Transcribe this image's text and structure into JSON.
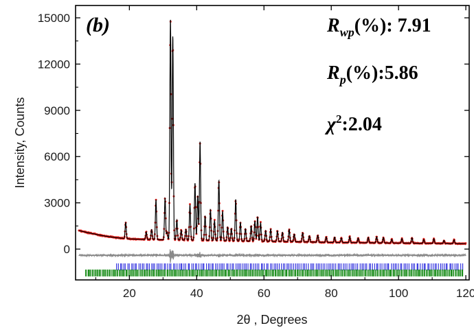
{
  "chart_data": {
    "type": "line",
    "panel_label": "(b)",
    "xlabel": "2θ , Degrees",
    "ylabel": "Intensity, Counts",
    "xlim": [
      4,
      121
    ],
    "ylim": [
      -2000,
      15800
    ],
    "xticks": [
      20,
      40,
      60,
      80,
      100,
      120
    ],
    "yticks": [
      0,
      3000,
      6000,
      9000,
      12000,
      15000
    ],
    "annotations": {
      "rwp": {
        "symbol": "R",
        "sub": "wp",
        "text": "(%): 7.91"
      },
      "rp": {
        "symbol": "R",
        "sub": "p",
        "text": "(%):5.86"
      },
      "chi2": {
        "symbol": "χ",
        "sup": "2",
        "text": ":2.04"
      }
    },
    "colors": {
      "observed": "#e8231f",
      "calculated": "#000000",
      "difference": "#8a8a8a",
      "phase1_ticks": "#2323dd",
      "phase2_ticks": "#118811"
    },
    "background": [
      [
        5,
        1200
      ],
      [
        8,
        1050
      ],
      [
        12,
        870
      ],
      [
        16,
        740
      ],
      [
        20,
        660
      ],
      [
        25,
        620
      ],
      [
        30,
        600
      ],
      [
        40,
        570
      ],
      [
        50,
        530
      ],
      [
        60,
        500
      ],
      [
        70,
        470
      ],
      [
        80,
        430
      ],
      [
        90,
        410
      ],
      [
        100,
        390
      ],
      [
        110,
        370
      ],
      [
        120,
        350
      ]
    ],
    "peaks": [
      {
        "x": 18.9,
        "h": 1050
      },
      {
        "x": 25.0,
        "h": 500
      },
      {
        "x": 26.6,
        "h": 650
      },
      {
        "x": 27.9,
        "h": 2600
      },
      {
        "x": 30.6,
        "h": 2700
      },
      {
        "x": 31.2,
        "h": 500
      },
      {
        "x": 32.2,
        "h": 14300
      },
      {
        "x": 32.9,
        "h": 13200
      },
      {
        "x": 34.1,
        "h": 1300
      },
      {
        "x": 35.4,
        "h": 650
      },
      {
        "x": 36.8,
        "h": 700
      },
      {
        "x": 38.0,
        "h": 2300
      },
      {
        "x": 39.5,
        "h": 3700
      },
      {
        "x": 40.3,
        "h": 2900
      },
      {
        "x": 41.0,
        "h": 6400
      },
      {
        "x": 42.5,
        "h": 1600
      },
      {
        "x": 44.1,
        "h": 2000
      },
      {
        "x": 45.3,
        "h": 1300
      },
      {
        "x": 46.6,
        "h": 3900
      },
      {
        "x": 47.7,
        "h": 1900
      },
      {
        "x": 49.2,
        "h": 900
      },
      {
        "x": 50.3,
        "h": 800
      },
      {
        "x": 51.6,
        "h": 2700
      },
      {
        "x": 53.0,
        "h": 1200
      },
      {
        "x": 54.5,
        "h": 800
      },
      {
        "x": 56.2,
        "h": 1000
      },
      {
        "x": 57.3,
        "h": 1300
      },
      {
        "x": 58.1,
        "h": 1600
      },
      {
        "x": 59.0,
        "h": 1200
      },
      {
        "x": 60.5,
        "h": 700
      },
      {
        "x": 62.0,
        "h": 800
      },
      {
        "x": 64.0,
        "h": 700
      },
      {
        "x": 65.5,
        "h": 600
      },
      {
        "x": 67.5,
        "h": 800
      },
      {
        "x": 69.0,
        "h": 500
      },
      {
        "x": 71.5,
        "h": 600
      },
      {
        "x": 73.5,
        "h": 400
      },
      {
        "x": 76.0,
        "h": 450
      },
      {
        "x": 78.5,
        "h": 350
      },
      {
        "x": 81.0,
        "h": 350
      },
      {
        "x": 83.0,
        "h": 300
      },
      {
        "x": 85.5,
        "h": 400
      },
      {
        "x": 88.0,
        "h": 300
      },
      {
        "x": 91.0,
        "h": 350
      },
      {
        "x": 93.5,
        "h": 400
      },
      {
        "x": 95.5,
        "h": 350
      },
      {
        "x": 98.0,
        "h": 250
      },
      {
        "x": 101.0,
        "h": 300
      },
      {
        "x": 104.0,
        "h": 350
      },
      {
        "x": 107.5,
        "h": 250
      },
      {
        "x": 110.5,
        "h": 300
      },
      {
        "x": 113.5,
        "h": 200
      },
      {
        "x": 116.5,
        "h": 250
      }
    ],
    "difference_offset": -400,
    "phase1_tick_y": -1150,
    "phase2_tick_y": -1550,
    "phase1_tick_start": 16.2,
    "phase1_tick_count": 190,
    "phase2_tick_start": 7.0,
    "phase2_tick_count": 340
  }
}
